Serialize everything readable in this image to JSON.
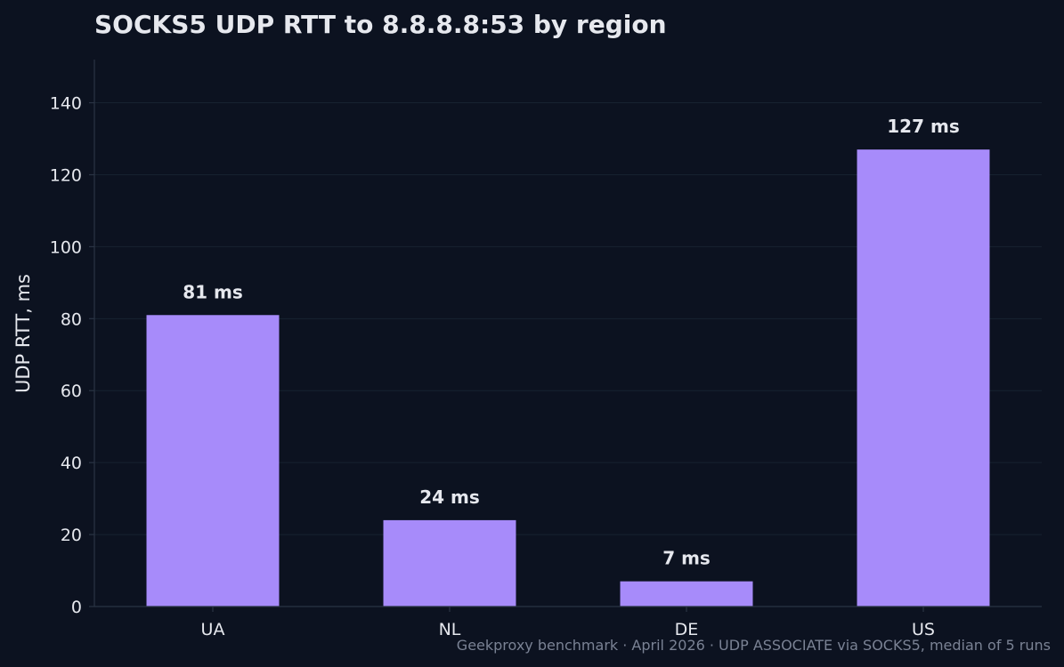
{
  "chart_data": {
    "type": "bar",
    "title": "SOCKS5 UDP RTT to 8.8.8.8:53 by region",
    "xlabel": "",
    "ylabel": "UDP RTT, ms",
    "categories": [
      "UA",
      "NL",
      "DE",
      "US"
    ],
    "values": [
      81,
      24,
      7,
      127
    ],
    "data_labels": [
      "81 ms",
      "24 ms",
      "7 ms",
      "127 ms"
    ],
    "ylim": [
      0,
      152
    ],
    "yticks": [
      0,
      20,
      40,
      60,
      80,
      100,
      120,
      140
    ],
    "grid": true,
    "footnote": "Geekproxy benchmark · April 2026 · UDP ASSOCIATE via SOCKS5, median of 5 runs"
  },
  "colors": {
    "background": "#0c1220",
    "bar": "#a78bfa",
    "grid": "#172230",
    "axis": "#2a3444",
    "text": "#e6e8ee",
    "footnote": "#7a8294"
  }
}
